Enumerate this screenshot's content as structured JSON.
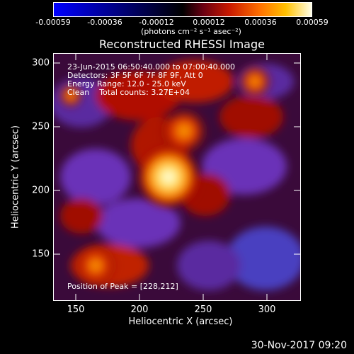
{
  "colorbar": {
    "ticks": [
      "-0.00059",
      "-0.00036",
      "-0.00012",
      "0.00012",
      "0.00036",
      "0.00059"
    ],
    "units": "(photons cm⁻² s⁻¹ asec⁻²)"
  },
  "title": "Reconstructed RHESSI Image",
  "info": {
    "line1": "23-Jun-2015 06:50:40.000 to 07:00:40.000",
    "line2": "Detectors: 3F 5F 6F 7F 8F 9F, Att 0",
    "line3": "Energy Range: 12.0 - 25.0 keV",
    "line4": "Clean    Total counts: 3.27E+04",
    "peak": "Position of Peak = [228,212]"
  },
  "axes": {
    "xlabel": "Heliocentric X (arcsec)",
    "ylabel": "Heliocentric Y (arcsec)",
    "xticks": [
      "150",
      "200",
      "250",
      "300"
    ],
    "yticks": [
      "300",
      "250",
      "200",
      "150"
    ],
    "xrange": [
      132,
      327
    ],
    "yrange": [
      115,
      310
    ]
  },
  "footer": "30-Nov-2017 09:20",
  "image": {
    "colormap": "blue-black-red-yellow-white",
    "peak_position": [
      228,
      212
    ]
  }
}
